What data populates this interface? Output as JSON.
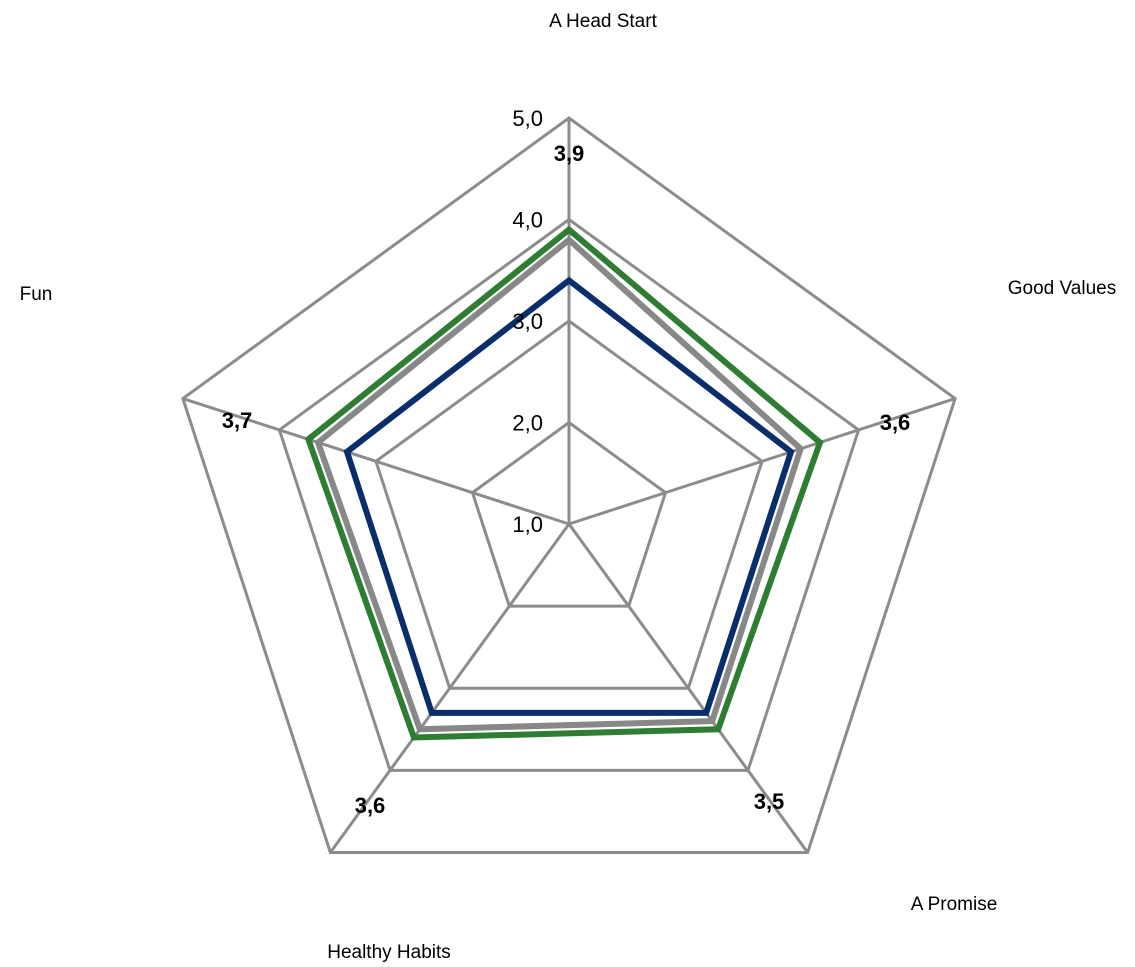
{
  "chart_data": {
    "type": "radar",
    "title": "",
    "categories": [
      "A Head Start",
      "Good Values",
      "A Promise",
      "Healthy Habits",
      "Fun"
    ],
    "rlim": [
      1.0,
      5.0
    ],
    "ticks": [
      "1,0",
      "2,0",
      "3,0",
      "4,0",
      "5,0"
    ],
    "tick_values": [
      1,
      2,
      3,
      4,
      5
    ],
    "grid": true,
    "legend": "none",
    "series": [
      {
        "color": "#2e7d32",
        "values": [
          3.9,
          3.6,
          3.5,
          3.6,
          3.7
        ]
      },
      {
        "color": "#888888",
        "values": [
          3.8,
          3.4,
          3.4,
          3.5,
          3.6
        ]
      },
      {
        "color": "#0a2d6b",
        "values": [
          3.4,
          3.3,
          3.3,
          3.3,
          3.3
        ]
      }
    ],
    "data_labels": [
      "3,9",
      "3,6",
      "3,5",
      "3,6",
      "3,7"
    ],
    "grid_color": "#8c8c8c"
  }
}
